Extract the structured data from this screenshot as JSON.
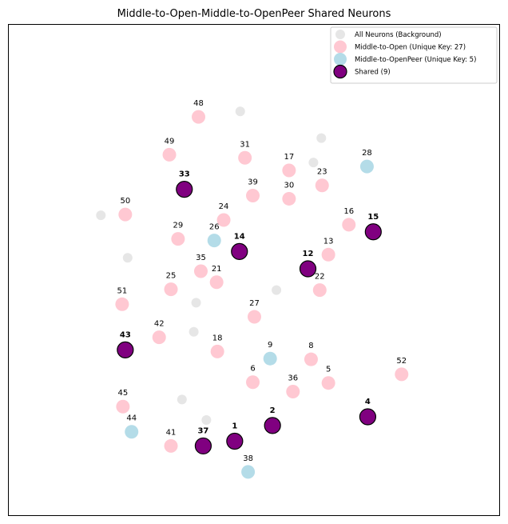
{
  "chart_data": {
    "type": "scatter",
    "title": "Middle-to-Open-Middle-to-OpenPeer Shared Neurons",
    "xlabel": "",
    "ylabel": "",
    "xlim": [
      0,
      625
    ],
    "ylim": [
      0,
      625
    ],
    "grid": false,
    "legend_position": "top-right",
    "colors": {
      "background": "#e6e6e6",
      "unique_a": "#ffc8d2",
      "unique_b": "#b4dce8",
      "shared": "#800080",
      "shared_edge": "#000000"
    },
    "legend": [
      {
        "key": "background",
        "label": "All Neurons (Background)"
      },
      {
        "key": "unique_a",
        "label": "Middle-to-Open (Unique Key: 27)"
      },
      {
        "key": "unique_b",
        "label": "Middle-to-OpenPeer (Unique Key: 5)"
      },
      {
        "key": "shared",
        "label": "Shared (9)"
      }
    ],
    "series": [
      {
        "key": "background",
        "points": [
          {
            "x": 295,
            "y": 514
          },
          {
            "x": 398,
            "y": 480
          },
          {
            "x": 388,
            "y": 449
          },
          {
            "x": 118,
            "y": 382
          },
          {
            "x": 152,
            "y": 328
          },
          {
            "x": 341,
            "y": 287
          },
          {
            "x": 239,
            "y": 271
          },
          {
            "x": 236,
            "y": 234
          },
          {
            "x": 221,
            "y": 148
          },
          {
            "x": 252,
            "y": 122
          }
        ]
      },
      {
        "key": "unique_a",
        "points": [
          {
            "label": "48",
            "x": 242,
            "y": 507
          },
          {
            "label": "49",
            "x": 205,
            "y": 459
          },
          {
            "label": "31",
            "x": 301,
            "y": 455
          },
          {
            "label": "17",
            "x": 357,
            "y": 439
          },
          {
            "label": "23",
            "x": 399,
            "y": 420
          },
          {
            "label": "39",
            "x": 311,
            "y": 407
          },
          {
            "label": "30",
            "x": 357,
            "y": 403
          },
          {
            "label": "50",
            "x": 149,
            "y": 383
          },
          {
            "label": "24",
            "x": 274,
            "y": 376
          },
          {
            "label": "16",
            "x": 433,
            "y": 370
          },
          {
            "label": "29",
            "x": 216,
            "y": 352
          },
          {
            "label": "13",
            "x": 407,
            "y": 332
          },
          {
            "label": "35",
            "x": 245,
            "y": 311
          },
          {
            "label": "21",
            "x": 265,
            "y": 297
          },
          {
            "label": "25",
            "x": 207,
            "y": 288
          },
          {
            "label": "22",
            "x": 396,
            "y": 287
          },
          {
            "label": "51",
            "x": 145,
            "y": 269
          },
          {
            "label": "27",
            "x": 313,
            "y": 253
          },
          {
            "label": "42",
            "x": 192,
            "y": 227
          },
          {
            "label": "18",
            "x": 266,
            "y": 209
          },
          {
            "label": "8",
            "x": 385,
            "y": 199
          },
          {
            "label": "52",
            "x": 500,
            "y": 180
          },
          {
            "label": "6",
            "x": 311,
            "y": 170
          },
          {
            "label": "5",
            "x": 407,
            "y": 169
          },
          {
            "label": "36",
            "x": 362,
            "y": 158
          },
          {
            "label": "45",
            "x": 146,
            "y": 139
          },
          {
            "label": "41",
            "x": 207,
            "y": 89
          }
        ]
      },
      {
        "key": "unique_b",
        "points": [
          {
            "label": "28",
            "x": 456,
            "y": 444
          },
          {
            "label": "26",
            "x": 262,
            "y": 350
          },
          {
            "label": "9",
            "x": 333,
            "y": 200
          },
          {
            "label": "44",
            "x": 157,
            "y": 107
          },
          {
            "label": "38",
            "x": 305,
            "y": 56
          }
        ]
      },
      {
        "key": "shared",
        "points": [
          {
            "label": "33",
            "x": 224,
            "y": 415
          },
          {
            "label": "15",
            "x": 464,
            "y": 361
          },
          {
            "label": "14",
            "x": 294,
            "y": 336
          },
          {
            "label": "12",
            "x": 381,
            "y": 314
          },
          {
            "label": "43",
            "x": 149,
            "y": 211
          },
          {
            "label": "4",
            "x": 457,
            "y": 126
          },
          {
            "label": "2",
            "x": 336,
            "y": 115
          },
          {
            "label": "1",
            "x": 288,
            "y": 95
          },
          {
            "label": "37",
            "x": 248,
            "y": 89
          }
        ]
      }
    ]
  }
}
